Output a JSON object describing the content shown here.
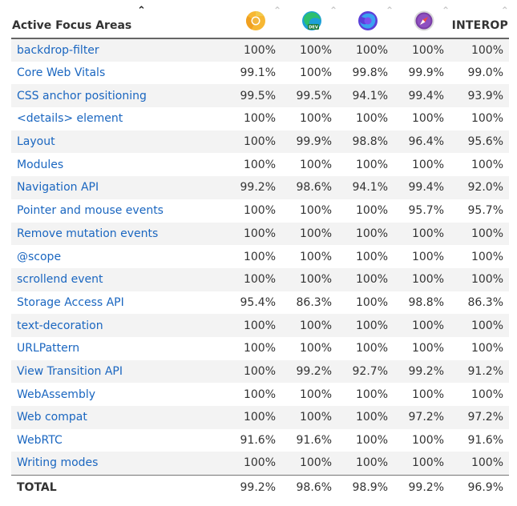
{
  "header": {
    "title": "Active Focus Areas",
    "interop": "INTEROP",
    "browsers": [
      {
        "icon": "chrome-canary-icon",
        "color": "#f5a623"
      },
      {
        "icon": "edge-dev-icon",
        "color": "#1fa37a",
        "badge": "DEV"
      },
      {
        "icon": "firefox-nightly-icon",
        "color": "#5a3fd6"
      },
      {
        "icon": "safari-technology-preview-icon",
        "color": "#7b3fa8"
      }
    ]
  },
  "rows": [
    {
      "name": "backdrop-filter",
      "values": [
        "100%",
        "100%",
        "100%",
        "100%",
        "100%"
      ]
    },
    {
      "name": "Core Web Vitals",
      "values": [
        "99.1%",
        "100%",
        "99.8%",
        "99.9%",
        "99.0%"
      ]
    },
    {
      "name": "CSS anchor positioning",
      "values": [
        "99.5%",
        "99.5%",
        "94.1%",
        "99.4%",
        "93.9%"
      ]
    },
    {
      "name": "<details> element",
      "values": [
        "100%",
        "100%",
        "100%",
        "100%",
        "100%"
      ]
    },
    {
      "name": "Layout",
      "values": [
        "100%",
        "99.9%",
        "98.8%",
        "96.4%",
        "95.6%"
      ]
    },
    {
      "name": "Modules",
      "values": [
        "100%",
        "100%",
        "100%",
        "100%",
        "100%"
      ]
    },
    {
      "name": "Navigation API",
      "values": [
        "99.2%",
        "98.6%",
        "94.1%",
        "99.4%",
        "92.0%"
      ]
    },
    {
      "name": "Pointer and mouse events",
      "values": [
        "100%",
        "100%",
        "100%",
        "95.7%",
        "95.7%"
      ]
    },
    {
      "name": "Remove mutation events",
      "values": [
        "100%",
        "100%",
        "100%",
        "100%",
        "100%"
      ]
    },
    {
      "name": "@scope",
      "values": [
        "100%",
        "100%",
        "100%",
        "100%",
        "100%"
      ]
    },
    {
      "name": "scrollend event",
      "values": [
        "100%",
        "100%",
        "100%",
        "100%",
        "100%"
      ]
    },
    {
      "name": "Storage Access API",
      "values": [
        "95.4%",
        "86.3%",
        "100%",
        "98.8%",
        "86.3%"
      ]
    },
    {
      "name": "text-decoration",
      "values": [
        "100%",
        "100%",
        "100%",
        "100%",
        "100%"
      ]
    },
    {
      "name": "URLPattern",
      "values": [
        "100%",
        "100%",
        "100%",
        "100%",
        "100%"
      ]
    },
    {
      "name": "View Transition API",
      "values": [
        "100%",
        "99.2%",
        "92.7%",
        "99.2%",
        "91.2%"
      ]
    },
    {
      "name": "WebAssembly",
      "values": [
        "100%",
        "100%",
        "100%",
        "100%",
        "100%"
      ]
    },
    {
      "name": "Web compat",
      "values": [
        "100%",
        "100%",
        "100%",
        "97.2%",
        "97.2%"
      ]
    },
    {
      "name": "WebRTC",
      "values": [
        "91.6%",
        "91.6%",
        "100%",
        "100%",
        "91.6%"
      ]
    },
    {
      "name": "Writing modes",
      "values": [
        "100%",
        "100%",
        "100%",
        "100%",
        "100%"
      ]
    }
  ],
  "total": {
    "label": "TOTAL",
    "values": [
      "99.2%",
      "98.6%",
      "98.9%",
      "99.2%",
      "96.9%"
    ]
  }
}
